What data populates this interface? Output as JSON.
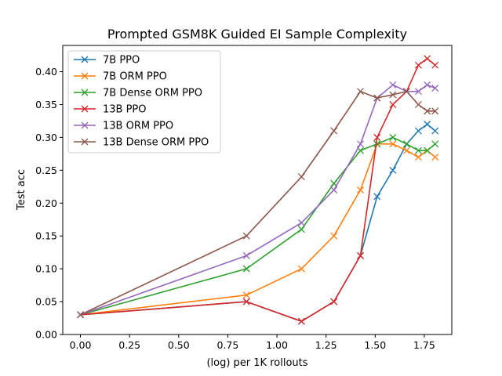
{
  "chart_data": {
    "type": "line",
    "title": "Prompted GSM8K Guided EI Sample Complexity",
    "xlabel": "(log) per 1K rollouts",
    "ylabel": "Test acc",
    "xlim": [
      -0.09,
      1.89
    ],
    "ylim": [
      0.0,
      0.44
    ],
    "xticks": [
      0.0,
      0.25,
      0.5,
      0.75,
      1.0,
      1.25,
      1.5,
      1.75
    ],
    "xtick_labels": [
      "0.00",
      "0.25",
      "0.50",
      "0.75",
      "1.00",
      "1.25",
      "1.50",
      "1.75"
    ],
    "yticks": [
      0.0,
      0.05,
      0.1,
      0.15,
      0.2,
      0.25,
      0.3,
      0.35,
      0.4
    ],
    "ytick_labels": [
      "0.00",
      "0.05",
      "0.10",
      "0.15",
      "0.20",
      "0.25",
      "0.30",
      "0.35",
      "0.40"
    ],
    "grid": false,
    "legend_position": "upper-left",
    "marker": "x",
    "series": [
      {
        "name": "7B PPO",
        "color": "#1f77b4",
        "x": [
          0.0,
          0.845,
          1.125,
          1.29,
          1.425,
          1.51,
          1.59,
          1.66,
          1.72,
          1.765,
          1.805
        ],
        "y": [
          0.03,
          0.05,
          0.02,
          0.05,
          0.12,
          0.21,
          0.25,
          0.29,
          0.31,
          0.32,
          0.31
        ]
      },
      {
        "name": "7B ORM PPO",
        "color": "#ff7f0e",
        "x": [
          0.0,
          0.845,
          1.125,
          1.29,
          1.425,
          1.51,
          1.59,
          1.66,
          1.72,
          1.765,
          1.805
        ],
        "y": [
          0.03,
          0.06,
          0.1,
          0.15,
          0.22,
          0.29,
          0.29,
          0.28,
          0.27,
          0.28,
          0.27
        ]
      },
      {
        "name": "7B Dense ORM PPO",
        "color": "#2ca02c",
        "x": [
          0.0,
          0.845,
          1.125,
          1.29,
          1.425,
          1.51,
          1.59,
          1.66,
          1.72,
          1.765,
          1.805
        ],
        "y": [
          0.03,
          0.1,
          0.16,
          0.23,
          0.28,
          0.29,
          0.3,
          0.29,
          0.28,
          0.28,
          0.29
        ]
      },
      {
        "name": "13B PPO",
        "color": "#d62728",
        "x": [
          0.0,
          0.845,
          1.125,
          1.29,
          1.425,
          1.51,
          1.59,
          1.66,
          1.72,
          1.765,
          1.805
        ],
        "y": [
          0.03,
          0.05,
          0.02,
          0.05,
          0.12,
          0.3,
          0.35,
          0.37,
          0.41,
          0.42,
          0.41
        ]
      },
      {
        "name": "13B ORM PPO",
        "color": "#9467bd",
        "x": [
          0.0,
          0.845,
          1.125,
          1.29,
          1.425,
          1.51,
          1.59,
          1.66,
          1.72,
          1.765,
          1.805
        ],
        "y": [
          0.03,
          0.12,
          0.17,
          0.22,
          0.29,
          0.36,
          0.38,
          0.37,
          0.37,
          0.38,
          0.375
        ]
      },
      {
        "name": "13B Dense ORM PPO",
        "color": "#8c564b",
        "x": [
          0.0,
          0.845,
          1.125,
          1.29,
          1.425,
          1.51,
          1.59,
          1.66,
          1.72,
          1.765,
          1.805
        ],
        "y": [
          0.03,
          0.15,
          0.24,
          0.31,
          0.37,
          0.36,
          0.365,
          0.37,
          0.35,
          0.34,
          0.34
        ]
      }
    ]
  }
}
